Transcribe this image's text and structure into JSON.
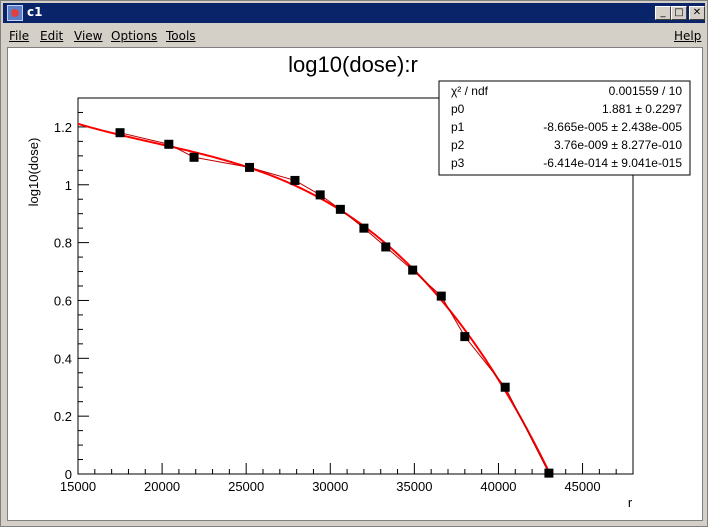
{
  "window": {
    "title": "c1"
  },
  "title_buttons": {
    "minimize": "_",
    "maximize": "□",
    "close": "✕"
  },
  "menu": {
    "file": "File",
    "edit": "Edit",
    "view": "View",
    "options": "Options",
    "tools": "Tools",
    "help": "Help"
  },
  "chart_data": {
    "type": "scatter",
    "title": "log10(dose):r",
    "xlabel": "r",
    "ylabel": "log10(dose)",
    "xlim": [
      15000,
      48000
    ],
    "ylim": [
      0,
      1.3
    ],
    "xticks": [
      15000,
      20000,
      25000,
      30000,
      35000,
      40000,
      45000
    ],
    "yticks": [
      0,
      0.2,
      0.4,
      0.6,
      0.8,
      1,
      1.2
    ],
    "xtick_labels": [
      "15000",
      "20000",
      "25000",
      "30000",
      "35000",
      "40000",
      "45000"
    ],
    "ytick_labels": [
      "0",
      "0.2",
      "0.4",
      "0.6",
      "0.8",
      "1",
      "1.2"
    ],
    "grid": false,
    "series": [
      {
        "kind": "data_points",
        "x": [
          17500,
          20400,
          21900,
          25200,
          27900,
          29400,
          30600,
          32000,
          33300,
          34900,
          36600,
          38000,
          40400,
          43000
        ],
        "y": [
          1.18,
          1.14,
          1.095,
          1.06,
          1.015,
          0.965,
          0.915,
          0.85,
          0.785,
          0.705,
          0.615,
          0.475,
          0.3,
          0.003
        ]
      },
      {
        "kind": "fit_curve",
        "color": "#ff0000",
        "params": [
          1.881,
          -8.665e-05,
          3.76e-09,
          -6.414e-14
        ],
        "x_range": [
          15000,
          43000
        ]
      }
    ],
    "stats_box": {
      "rows": [
        {
          "label": "χ² / ndf",
          "value": "0.001559 / 10"
        },
        {
          "label": "p0",
          "value": "1.881 ± 0.2297"
        },
        {
          "label": "p1",
          "value": "-8.665e-005 ± 2.438e-005"
        },
        {
          "label": "p2",
          "value": "3.76e-009 ± 8.277e-010"
        },
        {
          "label": "p3",
          "value": "-6.414e-014 ± 9.041e-015"
        }
      ]
    }
  }
}
